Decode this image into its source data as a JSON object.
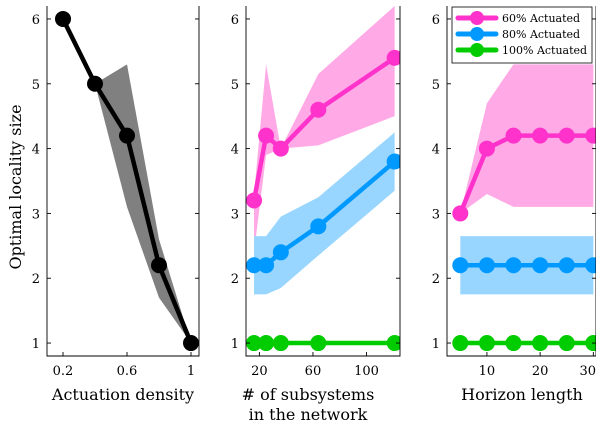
{
  "colors": {
    "panel1_line": "#000000",
    "panel1_band": "#808080",
    "s60": "#ff33cc",
    "s60_band": "#ffaae6",
    "s80": "#0099ff",
    "s80_band": "#99d6ff",
    "s100": "#00cc00"
  },
  "chart_data": [
    {
      "type": "line",
      "xlabel": "Actuation density",
      "ylabel": "Optimal locality size",
      "xlim": [
        0.1,
        1.05
      ],
      "ylim": [
        0.8,
        6.2
      ],
      "xticks": [
        0.2,
        0.6,
        1
      ],
      "xtick_labels": [
        "0.2",
        "0.6",
        "1"
      ],
      "yticks": [
        1,
        2,
        3,
        4,
        5,
        6
      ],
      "ytick_labels": [
        "1",
        "2",
        "3",
        "4",
        "5",
        "6"
      ],
      "grid": false,
      "series": [
        {
          "x": [
            0.2,
            0.4,
            0.6,
            0.8,
            1.0
          ],
          "y": [
            6,
            5,
            4.2,
            2.2,
            1
          ],
          "band_upper": [
            6,
            5,
            5.3,
            2.6,
            1
          ],
          "band_lower": [
            6,
            5,
            3.1,
            1.7,
            1
          ]
        }
      ]
    },
    {
      "type": "line",
      "xlabel": "# of subsystems",
      "xlabel_line2": "in the network",
      "xlim": [
        10,
        125
      ],
      "ylim": [
        0.8,
        6.2
      ],
      "xticks": [
        20,
        60,
        100
      ],
      "xtick_labels": [
        "20",
        "60",
        "100"
      ],
      "yticks": [
        1,
        2,
        3,
        4,
        5,
        6
      ],
      "ytick_labels": [
        "1",
        "2",
        "3",
        "4",
        "5",
        "6"
      ],
      "grid": false,
      "series": [
        {
          "name": "60% Actuated",
          "x": [
            16,
            25,
            36,
            64,
            121
          ],
          "y": [
            3.2,
            4.2,
            4.0,
            4.6,
            5.4
          ],
          "band_upper": [
            3.3,
            5.3,
            4.0,
            5.15,
            6.2
          ],
          "band_lower": [
            2.4,
            3.9,
            4.0,
            4.05,
            4.5
          ]
        },
        {
          "name": "80% Actuated",
          "x": [
            16,
            25,
            36,
            64,
            121
          ],
          "y": [
            2.2,
            2.2,
            2.4,
            2.8,
            3.8
          ],
          "band_upper": [
            2.65,
            2.65,
            2.95,
            3.25,
            4.25
          ],
          "band_lower": [
            1.75,
            1.75,
            1.85,
            2.35,
            3.35
          ]
        },
        {
          "name": "100% Actuated",
          "x": [
            16,
            25,
            36,
            64,
            121
          ],
          "y": [
            1,
            1,
            1,
            1,
            1
          ]
        }
      ]
    },
    {
      "type": "line",
      "xlabel": "Horizon length",
      "xlim": [
        2.5,
        30.5
      ],
      "ylim": [
        0.8,
        6.2
      ],
      "xticks": [
        10,
        20,
        30
      ],
      "xtick_labels": [
        "10",
        "20",
        "30"
      ],
      "yticks": [
        1,
        2,
        3,
        4,
        5,
        6
      ],
      "ytick_labels": [
        "1",
        "2",
        "3",
        "4",
        "5",
        "6"
      ],
      "grid": false,
      "legend": "top-right",
      "series": [
        {
          "name": "60% Actuated",
          "x": [
            5,
            10,
            15,
            20,
            25,
            30
          ],
          "y": [
            3,
            4,
            4.2,
            4.2,
            4.2,
            4.2
          ],
          "band_upper": [
            3.0,
            4.7,
            5.3,
            5.3,
            5.3,
            5.3
          ],
          "band_lower": [
            3.0,
            3.3,
            3.1,
            3.1,
            3.1,
            3.1
          ]
        },
        {
          "name": "80% Actuated",
          "x": [
            5,
            10,
            15,
            20,
            25,
            30
          ],
          "y": [
            2.2,
            2.2,
            2.2,
            2.2,
            2.2,
            2.2
          ],
          "band_upper": [
            2.65,
            2.65,
            2.65,
            2.65,
            2.65,
            2.65
          ],
          "band_lower": [
            1.75,
            1.75,
            1.75,
            1.75,
            1.75,
            1.75
          ]
        },
        {
          "name": "100% Actuated",
          "x": [
            5,
            10,
            15,
            20,
            25,
            30
          ],
          "y": [
            1,
            1,
            1,
            1,
            1,
            1
          ]
        }
      ]
    }
  ]
}
